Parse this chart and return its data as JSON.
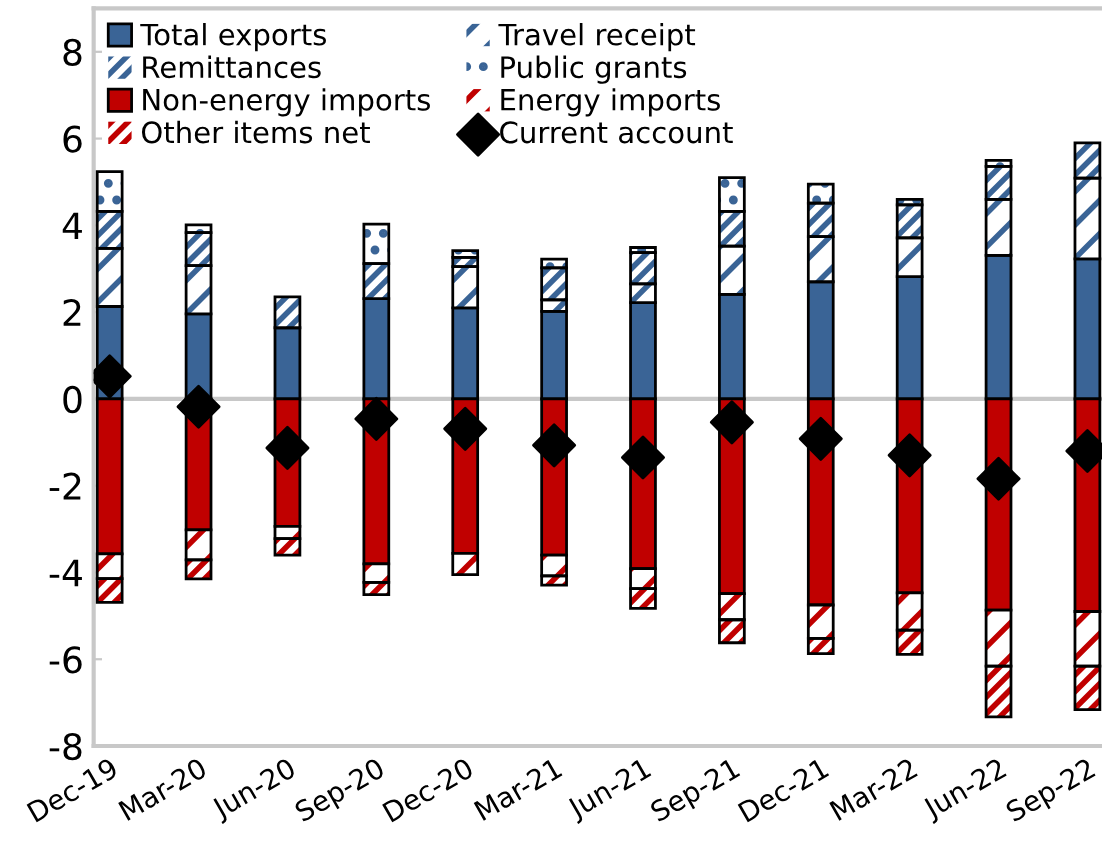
{
  "chart_data": {
    "type": "bar",
    "stacked": true,
    "categories": [
      "Dec-19",
      "Mar-20",
      "Jun-20",
      "Sep-20",
      "Dec-20",
      "Mar-21",
      "Jun-21",
      "Sep-21",
      "Dec-21",
      "Mar-22",
      "Jun-22",
      "Sep-22"
    ],
    "series": [
      {
        "name": "Total exports",
        "color": "#3a6496",
        "values": [
          2.13,
          1.96,
          1.64,
          2.31,
          2.1,
          2.02,
          2.22,
          2.41,
          2.7,
          2.82,
          3.31,
          3.23
        ]
      },
      {
        "name": "Travel receipt",
        "color": "#3a6496",
        "values": [
          1.34,
          1.11,
          null,
          null,
          0.95,
          0.26,
          0.43,
          1.11,
          1.04,
          0.89,
          1.29,
          1.86
        ]
      },
      {
        "name": "Remittances",
        "color": "#3a6496",
        "values": [
          0.85,
          0.76,
          0.71,
          0.81,
          0.21,
          0.74,
          0.72,
          0.8,
          0.77,
          0.76,
          0.76,
          0.81
        ]
      },
      {
        "name": "Public grants",
        "color": "#3a6496",
        "values": [
          0.92,
          0.18,
          null,
          0.91,
          0.16,
          0.2,
          0.12,
          0.78,
          0.44,
          0.13,
          0.14,
          null
        ]
      },
      {
        "name": "Non-energy imports",
        "color": "#c00000",
        "values": [
          -3.57,
          -3.02,
          -2.94,
          -3.8,
          -3.56,
          -3.6,
          -3.91,
          -4.49,
          -4.75,
          -4.47,
          -4.87,
          -4.9
        ]
      },
      {
        "name": "Energy imports",
        "color": "#c00000",
        "values": [
          -0.57,
          -0.69,
          -0.28,
          -0.43,
          -0.49,
          -0.48,
          -0.46,
          -0.6,
          -0.77,
          -0.86,
          -1.29,
          -1.26
        ]
      },
      {
        "name": "Other items net",
        "color": "#c00000",
        "values": [
          -0.55,
          -0.44,
          -0.38,
          -0.28,
          null,
          -0.21,
          -0.46,
          -0.53,
          -0.35,
          -0.56,
          -1.17,
          -1.0
        ]
      },
      {
        "name": "Current account",
        "type": "scatter",
        "color": "#000000",
        "marker": "diamond",
        "values": [
          0.52,
          -0.18,
          -1.13,
          -0.46,
          -0.69,
          -1.07,
          -1.35,
          -0.54,
          -0.92,
          -1.3,
          -1.84,
          -1.2
        ]
      }
    ],
    "ylim": [
      -8,
      9
    ],
    "yticks": [
      -8,
      -6,
      -4,
      -2,
      0,
      2,
      4,
      6,
      8
    ],
    "ref_lines": [
      {
        "axis": "y",
        "value": 0,
        "color": "#c8c8c8"
      }
    ],
    "grid": false,
    "legend": "top left"
  }
}
